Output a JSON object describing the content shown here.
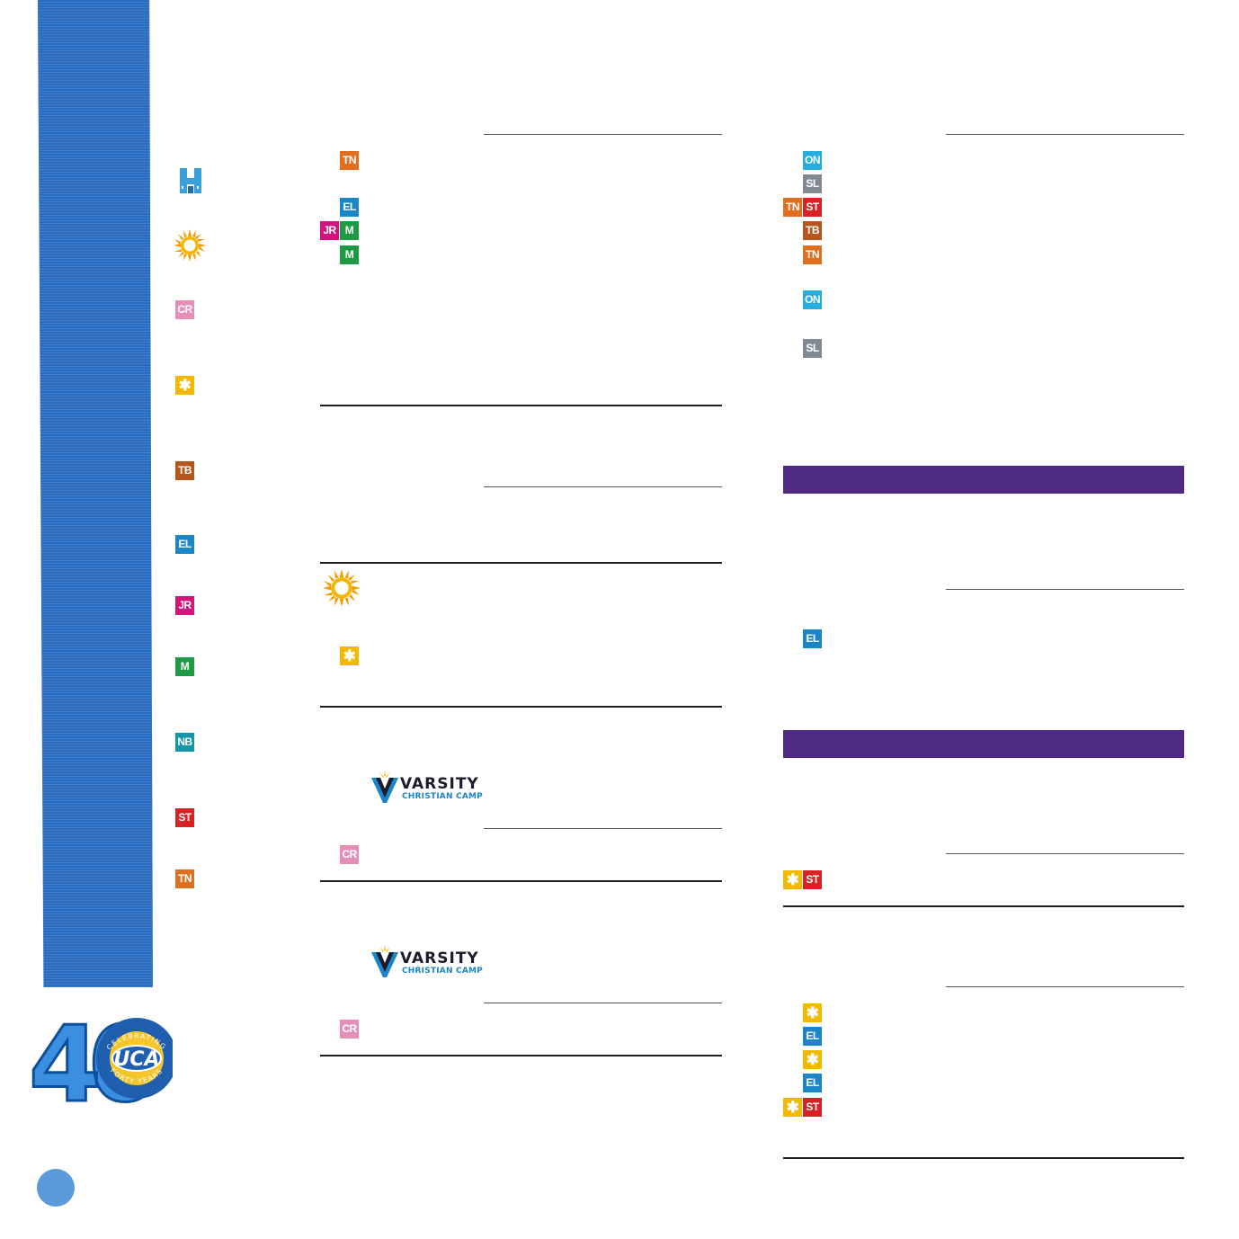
{
  "colors": {
    "tn": "#e07020",
    "el": "#1a86c8",
    "jr": "#d4147c",
    "m": "#1e9a45",
    "cr": "#e58fb8",
    "star": "#f5b800",
    "tb": "#b4561e",
    "nb": "#1496a6",
    "st": "#d82226",
    "on": "#27aee0",
    "sl": "#808a94",
    "ribbon": "#2a6fc4",
    "purple_bar": "#4e2a82",
    "page_dot": "#5b9ad8"
  },
  "legend": {
    "icons": [
      "hotel-icon",
      "sun-icon"
    ],
    "badges": [
      "CR",
      "✱",
      "TB",
      "EL",
      "JR",
      "M",
      "NB",
      "ST",
      "TN"
    ]
  },
  "column_middle": {
    "badges": [
      "TN",
      "EL",
      "JR",
      "M",
      "M",
      "✱",
      "CR",
      "CR"
    ]
  },
  "column_right": {
    "badges": [
      "ON",
      "SL",
      "TN",
      "ST",
      "TB",
      "TN",
      "ON",
      "SL",
      "EL",
      "✱",
      "ST",
      "✱",
      "EL",
      "✱",
      "EL",
      "✱",
      "ST"
    ]
  },
  "varsity_logo": {
    "word": "VARSITY",
    "sub": "CHRISTIAN CAMP"
  },
  "forty_logo": {
    "numeral": "40",
    "brand": "UCA",
    "arc_top": "CELEBRATING",
    "arc_bottom": "FORTY YEARS"
  }
}
